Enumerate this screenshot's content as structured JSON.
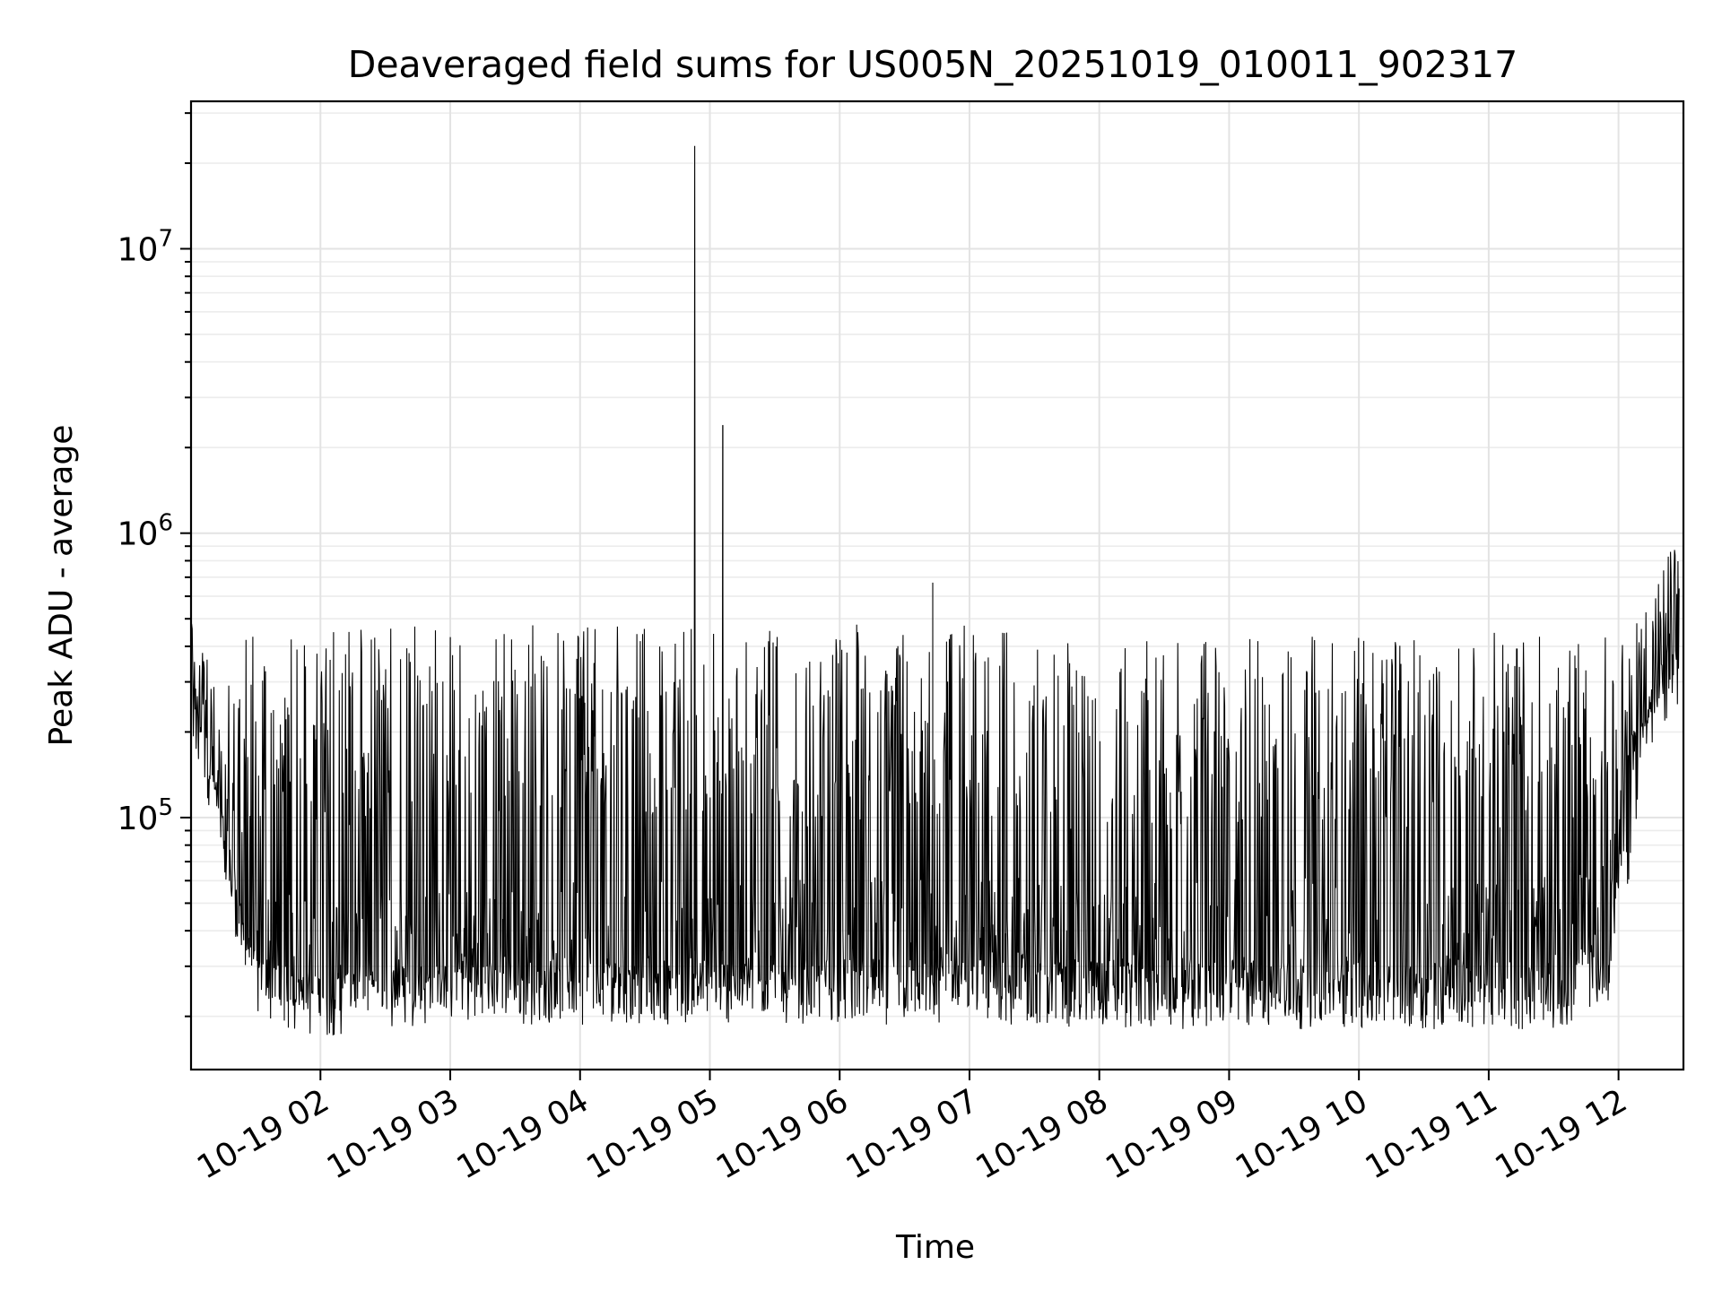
{
  "chart_data": {
    "type": "line",
    "title": "Deaveraged field sums for US005N_20251019_010011_902317",
    "xlabel": "Time",
    "ylabel": "Peak ADU - average",
    "y_scale": "log",
    "ylim": [
      13000,
      33000000
    ],
    "xlim": [
      "2025-10-19T01:00:11",
      "2025-10-19T12:30:00"
    ],
    "x_ticks": [
      {
        "value": "2025-10-19T02:00",
        "label": "10-19 02"
      },
      {
        "value": "2025-10-19T03:00",
        "label": "10-19 03"
      },
      {
        "value": "2025-10-19T04:00",
        "label": "10-19 04"
      },
      {
        "value": "2025-10-19T05:00",
        "label": "10-19 05"
      },
      {
        "value": "2025-10-19T06:00",
        "label": "10-19 06"
      },
      {
        "value": "2025-10-19T07:00",
        "label": "10-19 07"
      },
      {
        "value": "2025-10-19T08:00",
        "label": "10-19 08"
      },
      {
        "value": "2025-10-19T09:00",
        "label": "10-19 09"
      },
      {
        "value": "2025-10-19T10:00",
        "label": "10-19 10"
      },
      {
        "value": "2025-10-19T11:00",
        "label": "10-19 11"
      },
      {
        "value": "2025-10-19T12:00",
        "label": "10-19 12"
      }
    ],
    "y_ticks": [
      {
        "value": 100000,
        "base": "10",
        "exp": "5"
      },
      {
        "value": 1000000,
        "base": "10",
        "exp": "6"
      },
      {
        "value": 10000000,
        "base": "10",
        "exp": "7"
      }
    ],
    "grid": true,
    "line_color": "#000000",
    "series": [
      {
        "x": [
          "2025-10-19T01:00",
          "2025-10-19T01:05",
          "2025-10-19T01:10",
          "2025-10-19T01:15",
          "2025-10-19T01:20",
          "2025-10-19T01:25",
          "2025-10-19T01:30",
          "2025-10-19T01:35",
          "2025-10-19T01:40",
          "2025-10-19T01:50",
          "2025-10-19T02:00",
          "2025-10-19T02:30",
          "2025-10-19T03:00",
          "2025-10-19T03:30",
          "2025-10-19T04:00",
          "2025-10-19T04:30",
          "2025-10-19T04:53",
          "2025-10-19T05:00",
          "2025-10-19T05:06",
          "2025-10-19T05:30",
          "2025-10-19T06:00",
          "2025-10-19T06:43",
          "2025-10-19T07:00",
          "2025-10-19T08:00",
          "2025-10-19T09:00",
          "2025-10-19T10:00",
          "2025-10-19T11:00",
          "2025-10-19T11:35",
          "2025-10-19T11:55",
          "2025-10-19T12:05",
          "2025-10-19T12:12",
          "2025-10-19T12:20",
          "2025-10-19T12:28"
        ],
        "low": [
          250000,
          170000,
          110000,
          70000,
          40000,
          29000,
          25000,
          23000,
          22000,
          21000,
          20000,
          21000,
          21000,
          20000,
          19000,
          19000,
          20000,
          20000,
          20000,
          20000,
          19000,
          19000,
          19000,
          18000,
          18000,
          18000,
          18000,
          18000,
          24000,
          60000,
          180000,
          250000,
          300000
        ],
        "high": [
          650000,
          420000,
          350000,
          300000,
          420000,
          440000,
          460000,
          470000,
          470000,
          460000,
          460000,
          470000,
          470000,
          480000,
          480000,
          470000,
          23000000,
          420000,
          2400000,
          450000,
          450000,
          670000,
          450000,
          450000,
          450000,
          450000,
          450000,
          450000,
          450000,
          500000,
          600000,
          860000,
          930000
        ],
        "values": [
          400000,
          250000,
          180000,
          110000,
          70000,
          45000,
          35000,
          32000,
          30000,
          30000,
          30000,
          32000,
          33000,
          34000,
          34000,
          34000,
          34000,
          34000,
          34000,
          34000,
          34000,
          34000,
          34000,
          34000,
          34000,
          34000,
          34000,
          34000,
          40000,
          200000,
          300000,
          400000,
          500000
        ]
      }
    ]
  }
}
